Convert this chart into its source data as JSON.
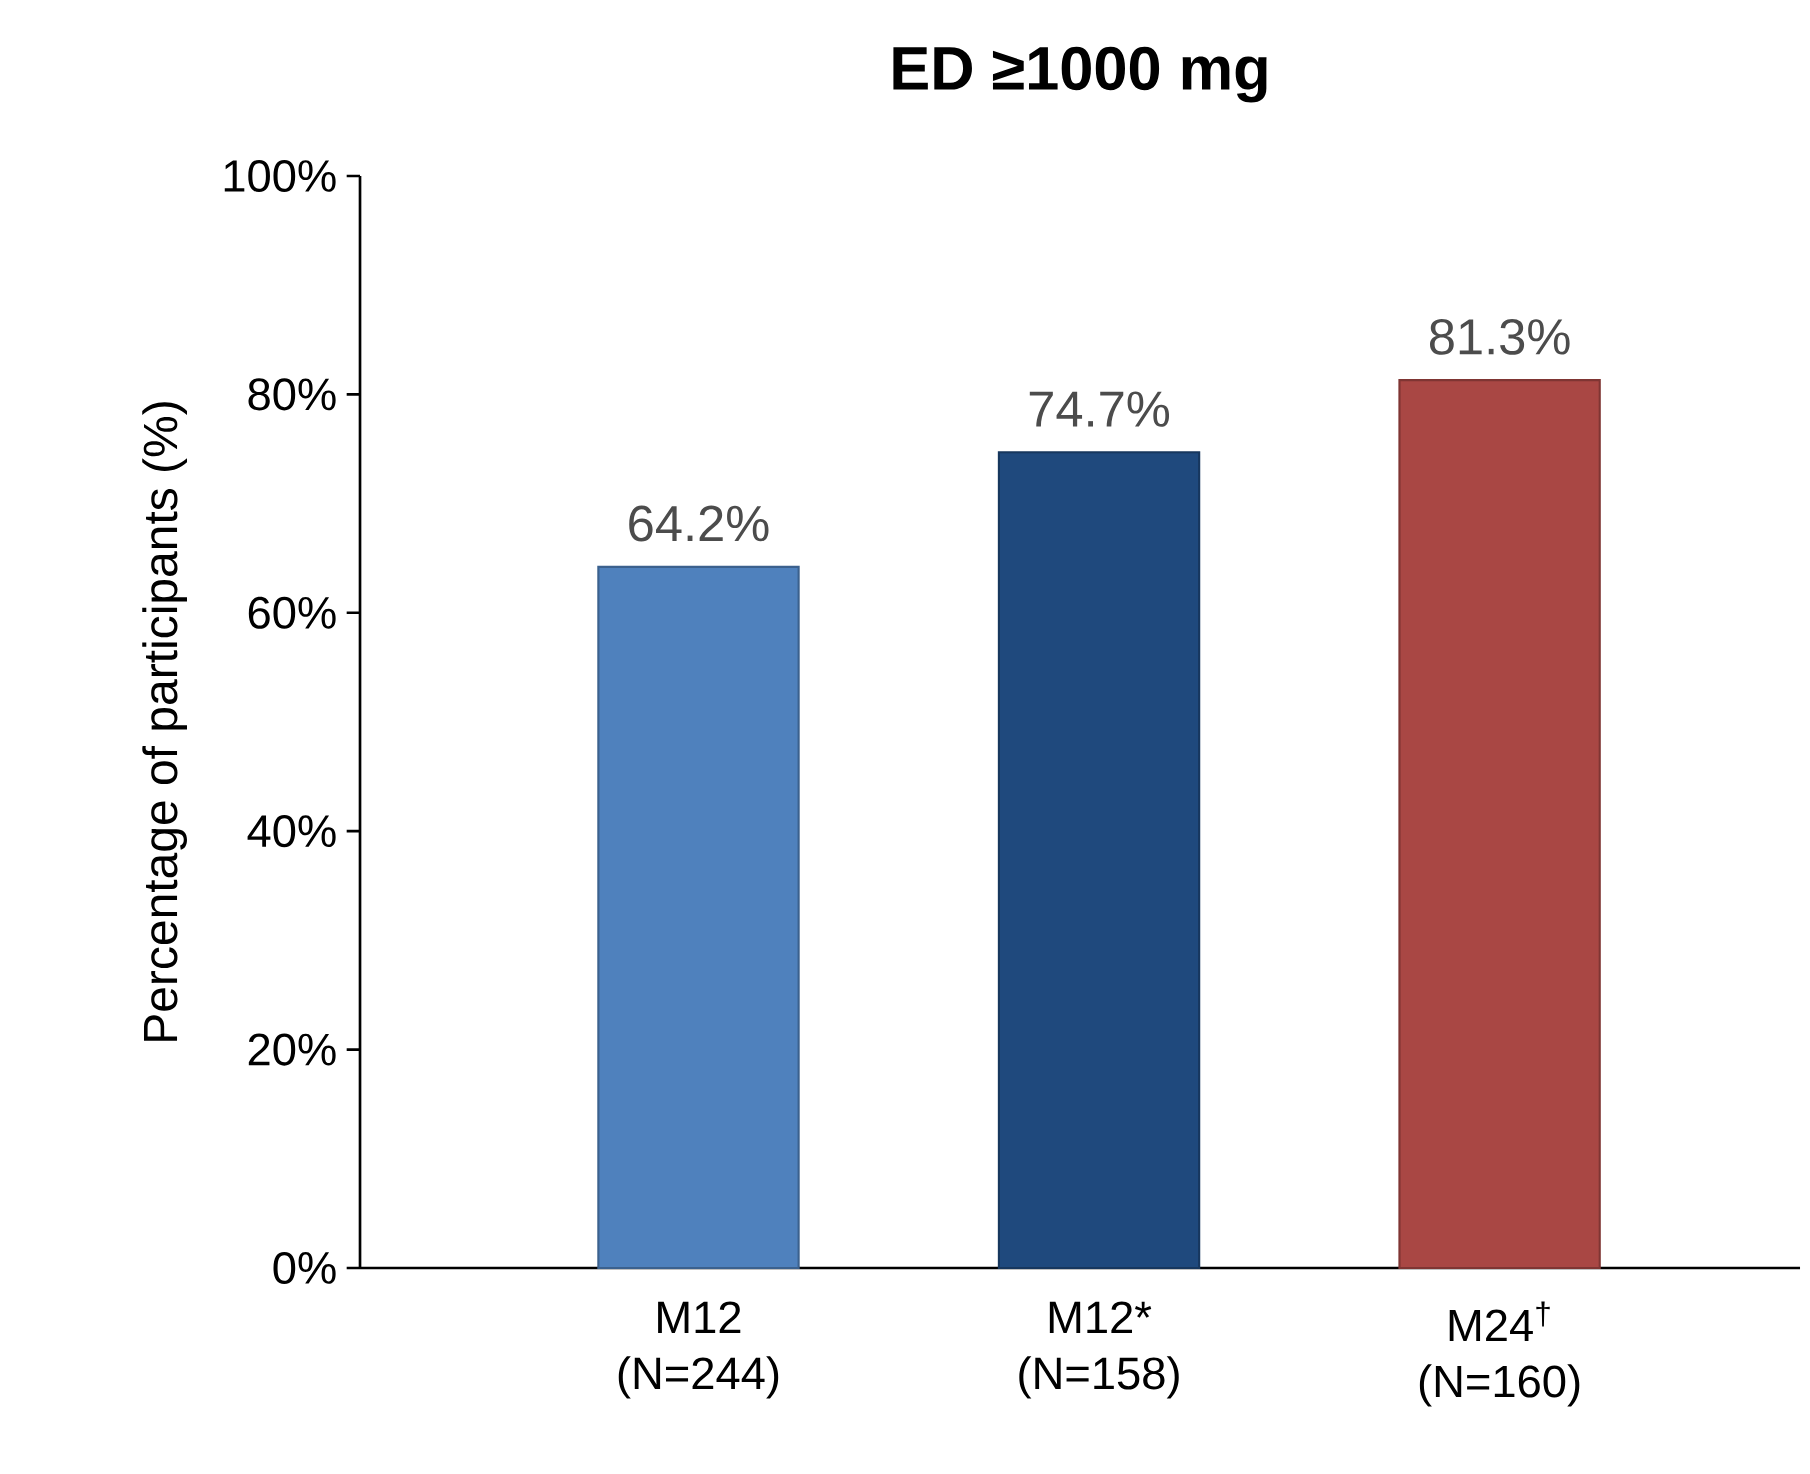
{
  "chart_data": {
    "type": "bar",
    "title": "ED ≥1000 mg",
    "ylabel": "Percentage of participants (%)",
    "categories": [
      "M12 (N=244)",
      "M12* (N=158)",
      "M24$^{†}$ (N=160)"
    ],
    "values": [
      64.2,
      74.7,
      81.3
    ],
    "colors": [
      "#4f81bd",
      "#1f497d",
      "#a94744"
    ],
    "value_labels": [
      "64.2%",
      "74.7%",
      "81.3%"
    ],
    "ylim": [
      0,
      100
    ],
    "yticks": [
      {
        "value": 0,
        "label": "0%"
      },
      {
        "value": 20,
        "label": "20%"
      },
      {
        "value": 40,
        "label": "40%"
      },
      {
        "value": 60,
        "label": "60%"
      },
      {
        "value": 80,
        "label": "80%"
      },
      {
        "value": 100,
        "label": "100%"
      }
    ],
    "grid": false
  }
}
